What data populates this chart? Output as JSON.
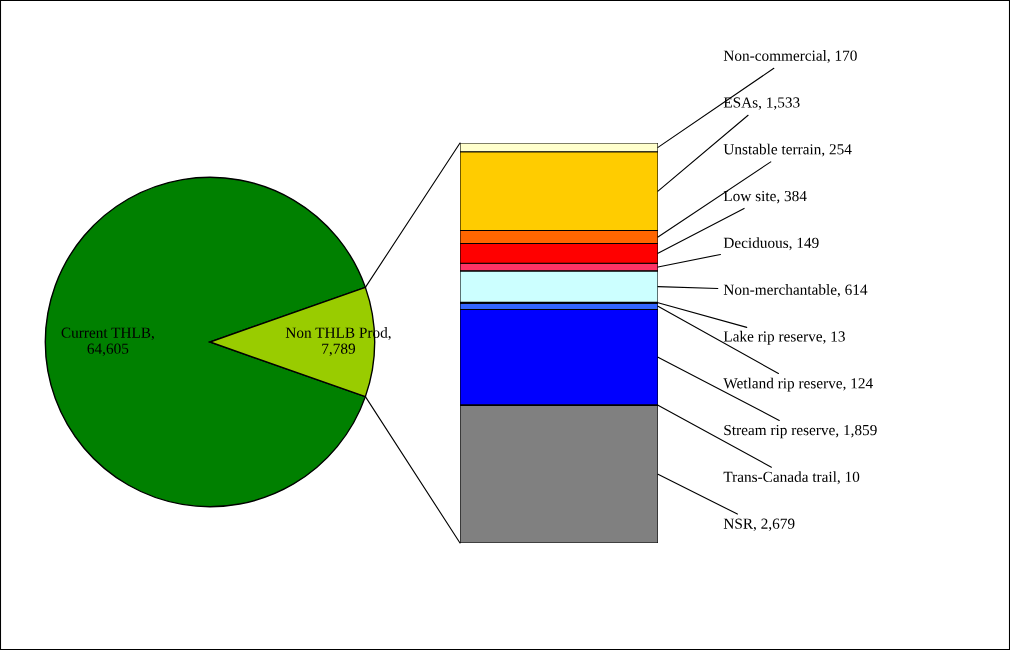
{
  "chart_data": [
    {
      "type": "pie",
      "categories": [
        null,
        null
      ],
      "values": [
        64605,
        7789
      ],
      "value_labels": [
        "Current THLB,\n64,605",
        "Non THLB Prod,\n7,789"
      ],
      "colors": [
        "#008000",
        "#99cc00"
      ]
    },
    {
      "type": "bar",
      "stacked": true,
      "categories": [
        null
      ],
      "series": [
        {
          "color": "#808080",
          "values": [
            2679
          ],
          "value_labels": [
            "NSR, 2,679"
          ]
        },
        {
          "color": "#993366",
          "values": [
            10
          ],
          "value_labels": [
            "Trans-Canada trail, 10"
          ]
        },
        {
          "color": "#0000ff",
          "values": [
            1859
          ],
          "value_labels": [
            "Stream rip reserve, 1,859"
          ]
        },
        {
          "color": "#3366ff",
          "values": [
            124
          ],
          "value_labels": [
            "Wetland rip reserve, 124"
          ]
        },
        {
          "color": "#000080",
          "values": [
            13
          ],
          "value_labels": [
            "Lake rip reserve, 13"
          ]
        },
        {
          "color": "#ccffff",
          "values": [
            614
          ],
          "value_labels": [
            "Non-merchantable, 614"
          ]
        },
        {
          "color": "#ff3366",
          "values": [
            149
          ],
          "value_labels": [
            "Deciduous, 149"
          ]
        },
        {
          "color": "#ff0000",
          "values": [
            384
          ],
          "value_labels": [
            "Low site, 384"
          ]
        },
        {
          "color": "#ff6600",
          "values": [
            254
          ],
          "value_labels": [
            "Unstable terrain, 254"
          ]
        },
        {
          "color": "#ffcc00",
          "values": [
            1533
          ],
          "value_labels": [
            "ESAs, 1,533"
          ]
        },
        {
          "color": "#ffffcc",
          "values": [
            170
          ],
          "value_labels": [
            "Non-commercial, 170"
          ]
        }
      ]
    }
  ]
}
